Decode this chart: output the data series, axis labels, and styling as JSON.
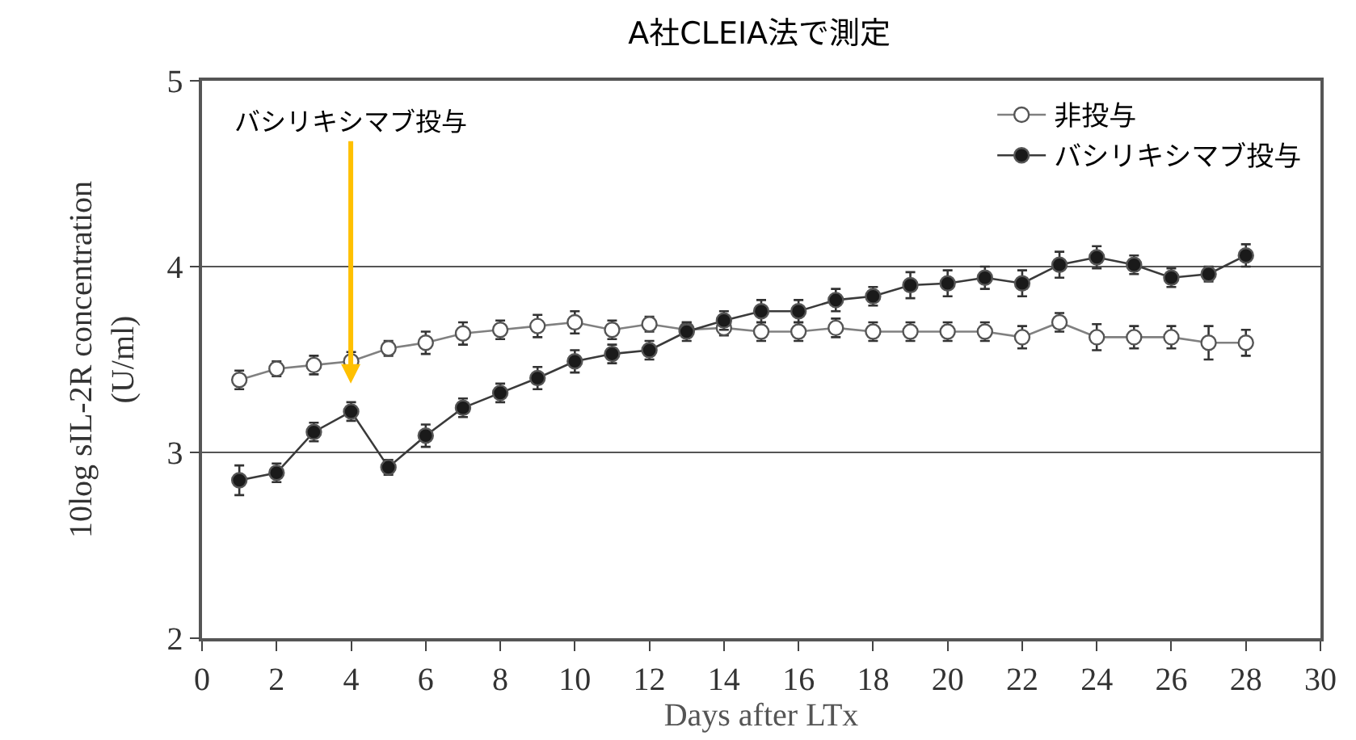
{
  "chart_data": {
    "type": "line",
    "title": "A社CLEIA法で測定",
    "xlabel": "Days after LTx",
    "ylabel": "10log sIL-2R concentration\n(U/ml)",
    "x": [
      1,
      2,
      3,
      4,
      5,
      6,
      7,
      8,
      9,
      10,
      11,
      12,
      13,
      14,
      15,
      16,
      17,
      18,
      19,
      20,
      21,
      22,
      23,
      24,
      25,
      26,
      27,
      28
    ],
    "series": [
      {
        "name": "非投与",
        "color": "#ffffff",
        "values": [
          3.39,
          3.45,
          3.47,
          3.49,
          3.56,
          3.59,
          3.64,
          3.66,
          3.68,
          3.7,
          3.66,
          3.69,
          3.66,
          3.67,
          3.65,
          3.65,
          3.67,
          3.65,
          3.65,
          3.65,
          3.65,
          3.62,
          3.7,
          3.62,
          3.62,
          3.62,
          3.59,
          3.59
        ],
        "errors": [
          0.05,
          0.04,
          0.05,
          0.05,
          0.04,
          0.06,
          0.06,
          0.05,
          0.06,
          0.06,
          0.05,
          0.04,
          0.04,
          0.04,
          0.05,
          0.05,
          0.05,
          0.05,
          0.05,
          0.05,
          0.05,
          0.06,
          0.05,
          0.07,
          0.06,
          0.06,
          0.09,
          0.07
        ]
      },
      {
        "name": "バシリキシマブ投与",
        "color": "#1a1a1a",
        "values": [
          2.85,
          2.89,
          3.11,
          3.22,
          2.92,
          3.09,
          3.24,
          3.32,
          3.4,
          3.49,
          3.53,
          3.55,
          3.65,
          3.71,
          3.76,
          3.76,
          3.82,
          3.84,
          3.9,
          3.91,
          3.94,
          3.91,
          4.01,
          4.05,
          4.01,
          3.94,
          3.96,
          4.06
        ],
        "errors": [
          0.08,
          0.05,
          0.05,
          0.05,
          0.04,
          0.06,
          0.05,
          0.05,
          0.06,
          0.06,
          0.05,
          0.05,
          0.05,
          0.05,
          0.06,
          0.06,
          0.06,
          0.05,
          0.07,
          0.07,
          0.06,
          0.07,
          0.07,
          0.06,
          0.05,
          0.05,
          0.04,
          0.06
        ]
      }
    ],
    "annotations": [
      "バシリキシマブ投与"
    ],
    "xlim": [
      0,
      30
    ],
    "xticks": [
      0,
      2,
      4,
      6,
      8,
      10,
      12,
      14,
      16,
      18,
      20,
      22,
      24,
      26,
      28,
      30
    ],
    "ylim": [
      2,
      5
    ],
    "yticks": [
      2,
      3,
      4,
      5
    ],
    "grid": "y",
    "legend": "top right",
    "marker": "circle",
    "line_style": "solid"
  }
}
